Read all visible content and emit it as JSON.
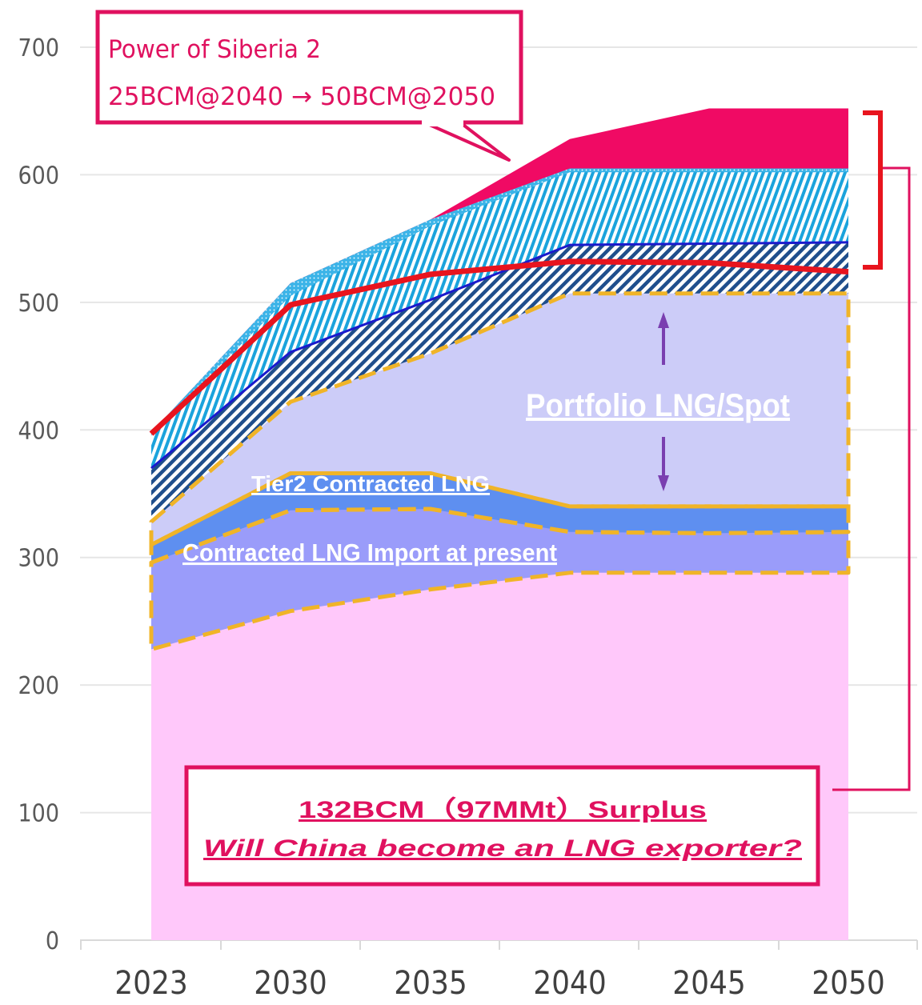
{
  "chart_data": {
    "type": "area",
    "title": "",
    "xlabel": "",
    "ylabel": "",
    "ylim": [
      0,
      700
    ],
    "y_ticks": [
      "0",
      "100",
      "200",
      "300",
      "400",
      "500",
      "600",
      "700"
    ],
    "categories": [
      "2023",
      "2030",
      "2035",
      "2040",
      "2045",
      "2050"
    ],
    "grid": true,
    "stacked_bands_cumulative_top": [
      {
        "key": "domestic",
        "color": "#ffc8fa",
        "values": [
          228,
          258,
          275,
          288,
          288,
          288
        ]
      },
      {
        "key": "contracted_present",
        "color": "#9a9cfa",
        "values": [
          296,
          337,
          338,
          320,
          319,
          320
        ]
      },
      {
        "key": "tier2_contracted",
        "color": "#5e8ff0",
        "values": [
          310,
          366,
          366,
          340,
          340,
          340
        ]
      },
      {
        "key": "portfolio_spot",
        "color": "#ccccf8",
        "values": [
          328,
          422,
          460,
          507,
          507,
          507
        ]
      },
      {
        "key": "hatch_dark",
        "color": "#1f4e8c",
        "values": [
          370,
          461,
          502,
          545,
          546,
          547
        ]
      },
      {
        "key": "hatch_light",
        "color": "#20a8e0",
        "values": [
          398,
          505,
          560,
          602,
          602,
          602
        ]
      },
      {
        "key": "light_blue_strip",
        "color": "#3cb4e8",
        "values": [
          398,
          515,
          565,
          605,
          605,
          605
        ]
      },
      {
        "key": "power_of_siberia_2",
        "color": "#f00a64",
        "values": [
          398,
          515,
          565,
          628,
          652,
          652
        ]
      }
    ],
    "series": [
      {
        "key": "demand_line",
        "color": "#e8141e",
        "values": [
          397,
          498,
          522,
          532,
          531,
          524
        ]
      }
    ],
    "band_labels": {
      "portfolio": "Portfolio LNG/Spot",
      "tier2": "Tier2 Contracted LNG",
      "contracted": "Contracted LNG Import at present"
    },
    "callout": {
      "line1": "Power of Siberia 2",
      "line2": "25BCM@2040 → 50BCM@2050"
    },
    "surplus_box": {
      "line1": "132BCM（97MMt）Surplus",
      "line2": "Will China become an LNG exporter?"
    },
    "accent_colors": {
      "callout": "#e0115f",
      "bracket": "#e8141e",
      "gridline": "#e6e6e6",
      "dashed_outline": "#f0b428"
    }
  }
}
